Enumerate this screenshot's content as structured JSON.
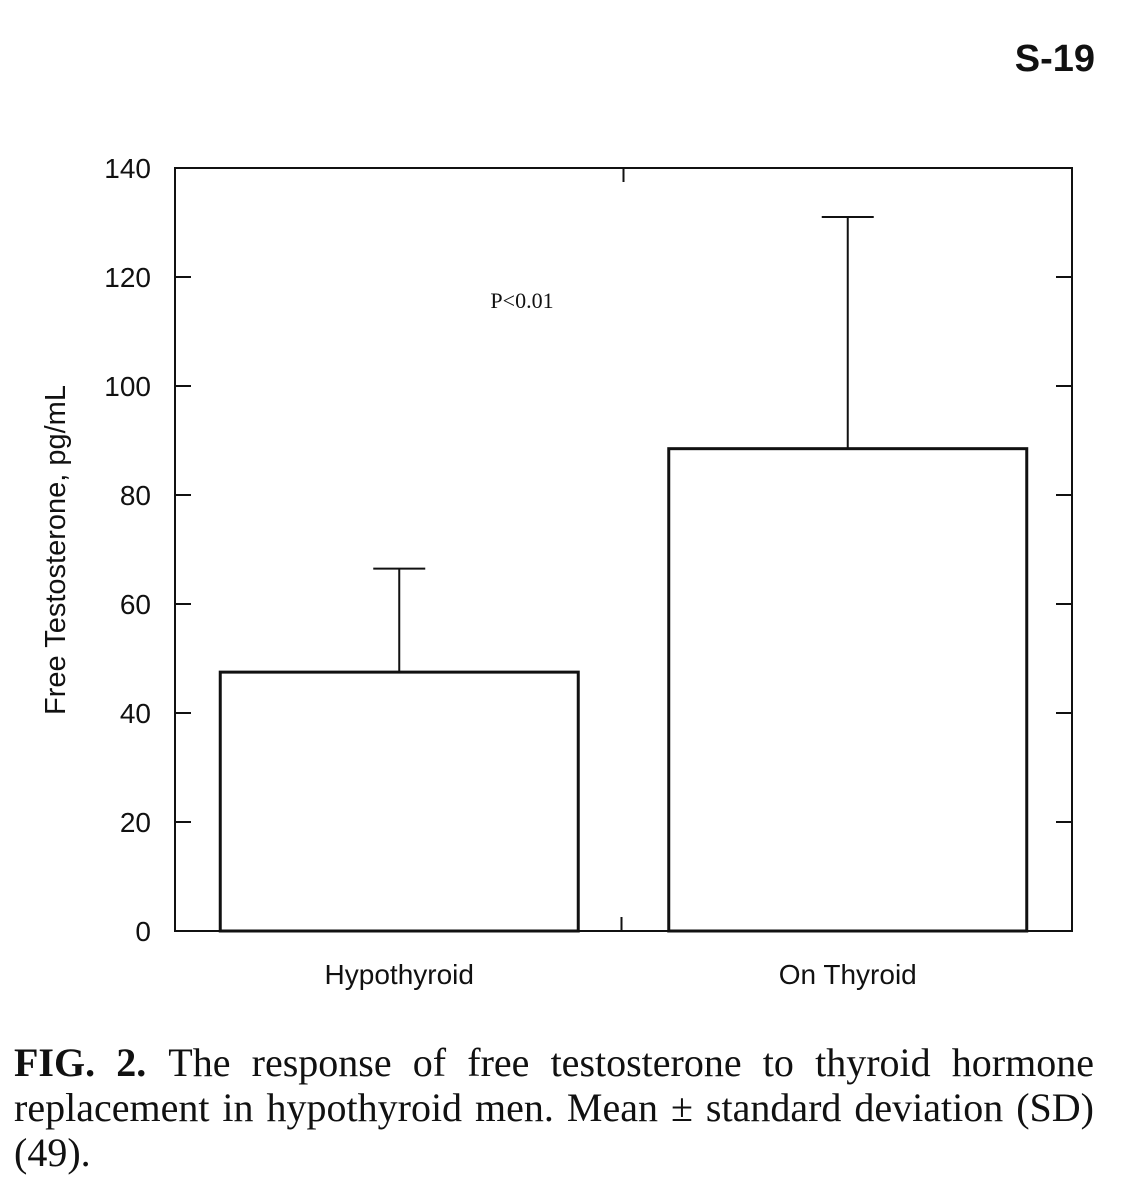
{
  "page_label": "S-19",
  "caption": {
    "label": "FIG. 2.",
    "text": "The response of free testosterone to thyroid hormone replacement in hypothyroid men. Mean ± standard deviation (SD) (49)."
  },
  "chart_data": {
    "type": "bar",
    "categories": [
      "Hypothyroid",
      "On Thyroid"
    ],
    "values": [
      47.5,
      88.5
    ],
    "error_upper": [
      66.5,
      131
    ],
    "ylabel": "Free Testosterone, pg/mL",
    "xlabel": "",
    "ylim": [
      0,
      140
    ],
    "yticks": [
      0,
      20,
      40,
      60,
      80,
      100,
      120,
      140
    ],
    "annotation": "P<0.01",
    "grid": false,
    "bar_fill": "#ffffff",
    "bar_stroke": "#111111"
  }
}
